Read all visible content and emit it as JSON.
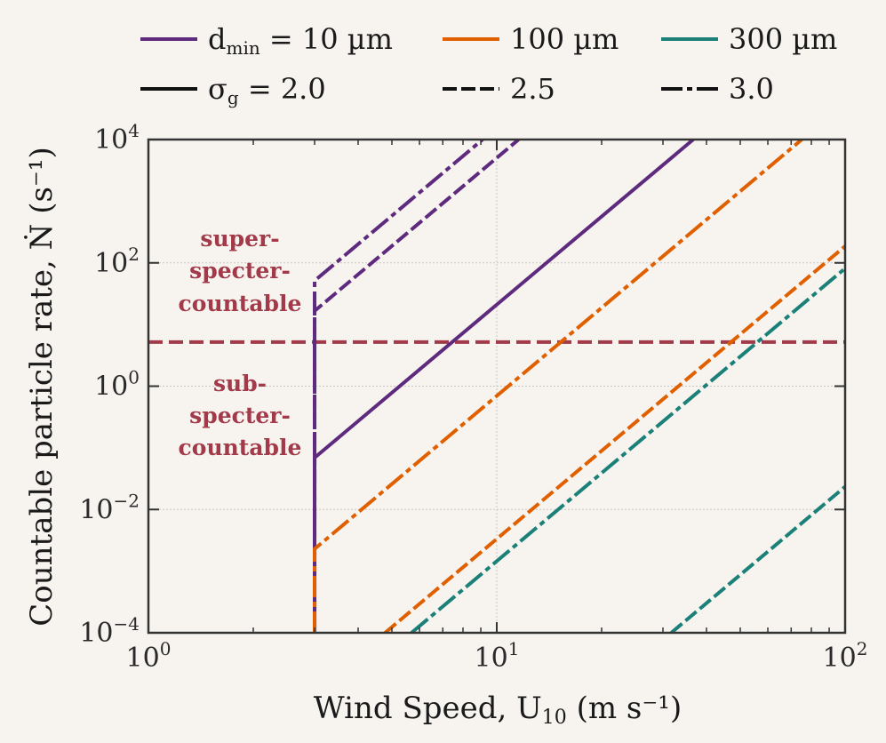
{
  "chart_data": {
    "type": "line",
    "xscale": "log",
    "yscale": "log",
    "xlabel": "Wind Speed, U10 (m s⁻¹)",
    "xlabel_main": "Wind Speed, U",
    "xlabel_sub": "10",
    "xlabel_unit": " (m s⁻¹)",
    "ylabel": "Countable particle rate, Ṅ (s⁻¹)",
    "xlim": [
      1,
      100
    ],
    "ylim": [
      0.0001,
      10000
    ],
    "x_ticks": [
      {
        "exp": 0,
        "base": "10",
        "sup": "0"
      },
      {
        "exp": 1,
        "base": "10",
        "sup": "1"
      },
      {
        "exp": 2,
        "base": "10",
        "sup": "2"
      }
    ],
    "y_ticks": [
      {
        "exp": 4,
        "base": "10",
        "sup": "4"
      },
      {
        "exp": 2,
        "base": "10",
        "sup": "2"
      },
      {
        "exp": 0,
        "base": "10",
        "sup": "0"
      },
      {
        "exp": -2,
        "base": "10",
        "sup": "−2"
      },
      {
        "exp": -4,
        "base": "10",
        "sup": "−4"
      }
    ],
    "grid": true,
    "threshold_U10": 3,
    "series": [
      {
        "name": "dmin=10µm, σg=2.0",
        "color": "#5e2a7e",
        "style": "solid",
        "log10N_at_U3": -1.16,
        "log10N_at_U100": 6.07
      },
      {
        "name": "dmin=10µm, σg=2.5",
        "color": "#5e2a7e",
        "style": "dashed",
        "log10N_at_U3": 1.22,
        "log10N_at_U100": 8.45
      },
      {
        "name": "dmin=10µm, σg=3.0",
        "color": "#5e2a7e",
        "style": "dashdot",
        "log10N_at_U3": 1.71,
        "log10N_at_U100": 8.94
      },
      {
        "name": "dmin=100µm, σg=2.5",
        "color": "#e06000",
        "style": "dashed",
        "log10N_at_U3": -4.96,
        "log10N_at_U100": 2.27
      },
      {
        "name": "dmin=100µm, σg=3.0",
        "color": "#e06000",
        "style": "dashdot",
        "log10N_at_U3": -2.64,
        "log10N_at_U100": 4.59
      },
      {
        "name": "dmin=300µm, σg=2.5",
        "color": "#1a8078",
        "style": "dashed",
        "log10N_at_U3": -8.86,
        "log10N_at_U100": -1.63
      },
      {
        "name": "dmin=300µm, σg=3.0",
        "color": "#1a8078",
        "style": "dashdot",
        "log10N_at_U3": -5.32,
        "log10N_at_U100": 1.91
      }
    ],
    "threshold_line": {
      "value": 5.2,
      "color": "#a23a4a",
      "style": "dashed"
    },
    "annotations": {
      "above": [
        "super-",
        "specter-",
        "countable"
      ],
      "below": [
        "sub-",
        "specter-",
        "countable"
      ]
    },
    "legend": {
      "placement": "top",
      "color_entries": [
        {
          "label_main": "d",
          "label_sub": "min",
          "label_rest": " = 10 µm",
          "color": "#5e2a7e"
        },
        {
          "label": "100 µm",
          "color": "#e06000"
        },
        {
          "label": "300 µm",
          "color": "#1a8078"
        }
      ],
      "style_entries": [
        {
          "label_main": "σ",
          "label_sub": "g",
          "label_rest": " = 2.0",
          "style": "solid"
        },
        {
          "label": "2.5",
          "style": "dashed"
        },
        {
          "label": "3.0",
          "style": "dashdot"
        }
      ]
    }
  }
}
